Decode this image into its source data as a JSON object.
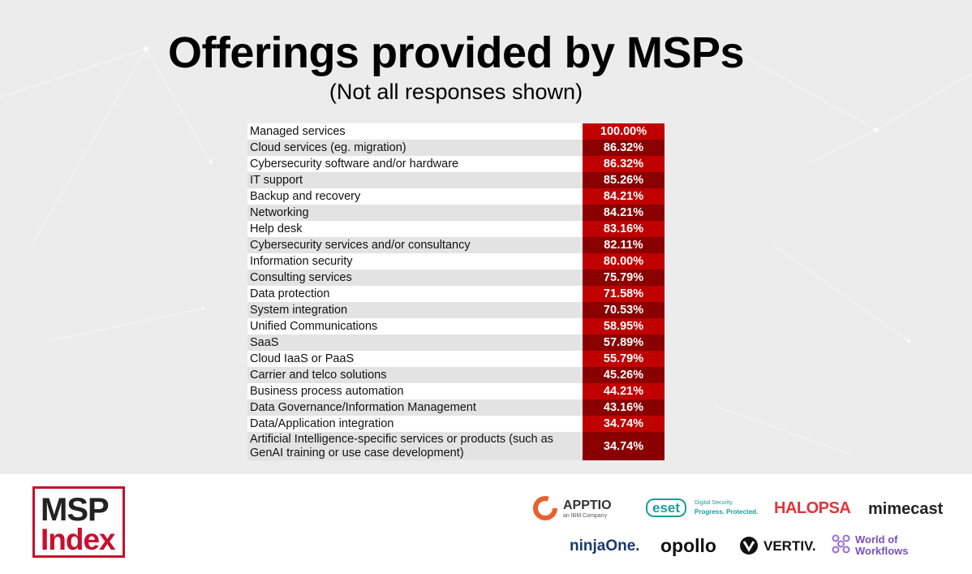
{
  "title": "Offerings provided by MSPs",
  "subtitle": "(Not all responses shown)",
  "chart_data": {
    "type": "table",
    "value_suffix": "%",
    "rows": [
      {
        "label": "Managed services",
        "value": 100.0,
        "display": "100.00%"
      },
      {
        "label": "Cloud services (eg. migration)",
        "value": 86.32,
        "display": "86.32%"
      },
      {
        "label": "Cybersecurity software and/or hardware",
        "value": 86.32,
        "display": "86.32%"
      },
      {
        "label": "IT support",
        "value": 85.26,
        "display": "85.26%"
      },
      {
        "label": "Backup and recovery",
        "value": 84.21,
        "display": "84.21%"
      },
      {
        "label": "Networking",
        "value": 84.21,
        "display": "84.21%"
      },
      {
        "label": "Help desk",
        "value": 83.16,
        "display": "83.16%"
      },
      {
        "label": "Cybersecurity services and/or consultancy",
        "value": 82.11,
        "display": "82.11%"
      },
      {
        "label": "Information security",
        "value": 80.0,
        "display": "80.00%"
      },
      {
        "label": "Consulting services",
        "value": 75.79,
        "display": "75.79%"
      },
      {
        "label": "Data protection",
        "value": 71.58,
        "display": "71.58%"
      },
      {
        "label": "System integration",
        "value": 70.53,
        "display": "70.53%"
      },
      {
        "label": "Unified Communications",
        "value": 58.95,
        "display": "58.95%"
      },
      {
        "label": "SaaS",
        "value": 57.89,
        "display": "57.89%"
      },
      {
        "label": "Cloud IaaS or PaaS",
        "value": 55.79,
        "display": "55.79%"
      },
      {
        "label": "Carrier and telco solutions",
        "value": 45.26,
        "display": "45.26%"
      },
      {
        "label": "Business process automation",
        "value": 44.21,
        "display": "44.21%"
      },
      {
        "label": "Data Governance/Information Management",
        "value": 43.16,
        "display": "43.16%"
      },
      {
        "label": "Data/Application integration",
        "value": 34.74,
        "display": "34.74%"
      },
      {
        "label": "Artificial Intelligence-specific services or products (such as GenAI training or use case development)",
        "value": 34.74,
        "display": "34.74%"
      }
    ],
    "colors": {
      "value_odd": "#c00000",
      "value_even": "#8a0000"
    }
  },
  "footer": {
    "logo_line1": "MSP",
    "logo_line2": "Index",
    "logo_accent": "#c8102e",
    "sponsors": [
      {
        "name": "APPTIO",
        "tagline": "an IBM Company"
      },
      {
        "name": "eset",
        "tagline_line1": "Digital Security",
        "tagline_line2": "Progress. Protected."
      },
      {
        "name": "HALOPSA"
      },
      {
        "name": "mimecast"
      },
      {
        "name": "ninjaOne."
      },
      {
        "name": "opollo"
      },
      {
        "name": "VERTIV."
      },
      {
        "name_line1": "World of",
        "name_line2": "Workflows"
      }
    ]
  }
}
